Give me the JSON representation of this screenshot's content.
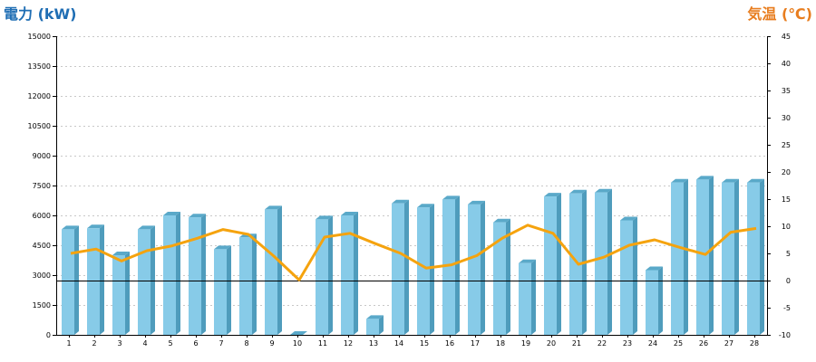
{
  "chart_data": {
    "type": "bar",
    "title_left": "電力 (kW)",
    "title_right": "気温 (℃)",
    "left_color": "#1f6eb4",
    "right_color": "#e87d1e",
    "bar_color": "#87cbe8",
    "line_color": "#f5a30e",
    "grid": true,
    "categories": [
      "1",
      "2",
      "3",
      "4",
      "5",
      "6",
      "7",
      "8",
      "9",
      "10",
      "11",
      "12",
      "13",
      "14",
      "15",
      "16",
      "17",
      "18",
      "19",
      "20",
      "21",
      "22",
      "23",
      "24",
      "25",
      "26",
      "27",
      "28"
    ],
    "y_left": {
      "min": 0,
      "max": 15000,
      "step": 1500,
      "ticks": [
        "0",
        "1500",
        "3000",
        "4500",
        "6000",
        "7500",
        "9000",
        "10500",
        "12000",
        "13500",
        "15000"
      ]
    },
    "y_right": {
      "min": -10,
      "max": 45,
      "step": 5,
      "ticks": [
        "-10",
        "-5",
        "0",
        "5",
        "10",
        "15",
        "20",
        "25",
        "30",
        "35",
        "40",
        "45"
      ]
    },
    "series": [
      {
        "kind": "bar",
        "axis": "left",
        "values": [
          5300,
          5350,
          4000,
          5300,
          6000,
          5900,
          4300,
          4900,
          6300,
          0,
          5800,
          6000,
          800,
          6600,
          6400,
          6800,
          6550,
          5650,
          3600,
          6950,
          7100,
          7150,
          5750,
          3250,
          7650,
          7800,
          7650,
          7650
        ]
      },
      {
        "kind": "line",
        "axis": "right",
        "values": [
          5,
          5.8,
          3.6,
          5.5,
          6.4,
          7.8,
          9.4,
          8.5,
          4.5,
          0.1,
          8,
          8.7,
          6.8,
          5,
          2.3,
          2.9,
          4.6,
          7.8,
          10.2,
          8.7,
          3,
          4.3,
          6.5,
          7.5,
          6.1,
          4.8,
          8.9,
          9.6
        ]
      }
    ]
  }
}
